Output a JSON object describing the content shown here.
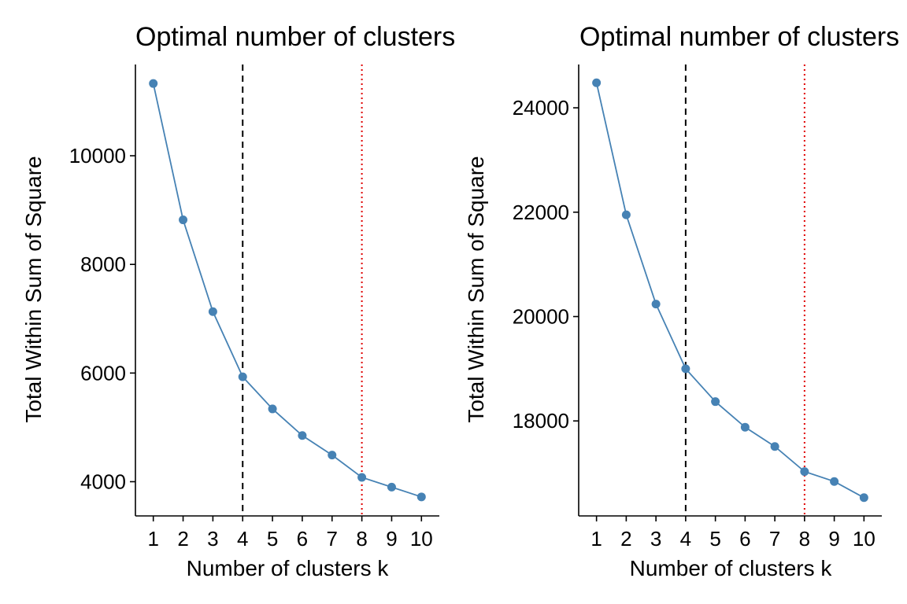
{
  "chart_data": [
    {
      "type": "line",
      "title": "Optimal number of clusters",
      "xlabel": "Number of clusters k",
      "ylabel": "Total Within Sum of Square",
      "x": [
        1,
        2,
        3,
        4,
        5,
        6,
        7,
        8,
        9,
        10
      ],
      "series": [
        {
          "values": [
            11330,
            8820,
            7130,
            5930,
            5340,
            4850,
            4490,
            4080,
            3900,
            3720
          ]
        }
      ],
      "x_ticks": [
        "1",
        "2",
        "3",
        "4",
        "5",
        "6",
        "7",
        "8",
        "9",
        "10"
      ],
      "y_ticks": [
        4000,
        6000,
        8000,
        10000
      ],
      "xlim": [
        0.4,
        10.6
      ],
      "ylim": [
        3370,
        11680
      ],
      "vlines": [
        {
          "x": 4,
          "style": "dashed",
          "color": "#000000"
        },
        {
          "x": 8,
          "style": "dotted",
          "color": "#e00000"
        }
      ],
      "color": "#4682b4",
      "grid": false
    },
    {
      "type": "line",
      "title": "Optimal number of clusters",
      "xlabel": "Number of clusters k",
      "ylabel": "Total Within Sum of Square",
      "x": [
        1,
        2,
        3,
        4,
        5,
        6,
        7,
        8,
        9,
        10
      ],
      "series": [
        {
          "values": [
            24480,
            21950,
            20240,
            19000,
            18370,
            17880,
            17510,
            17030,
            16840,
            16530
          ]
        }
      ],
      "x_ticks": [
        "1",
        "2",
        "3",
        "4",
        "5",
        "6",
        "7",
        "8",
        "9",
        "10"
      ],
      "y_ticks": [
        18000,
        20000,
        22000,
        24000
      ],
      "xlim": [
        0.4,
        10.6
      ],
      "ylim": [
        16180,
        24830
      ],
      "vlines": [
        {
          "x": 4,
          "style": "dashed",
          "color": "#000000"
        },
        {
          "x": 8,
          "style": "dotted",
          "color": "#e00000"
        }
      ],
      "color": "#4682b4",
      "grid": false
    }
  ]
}
